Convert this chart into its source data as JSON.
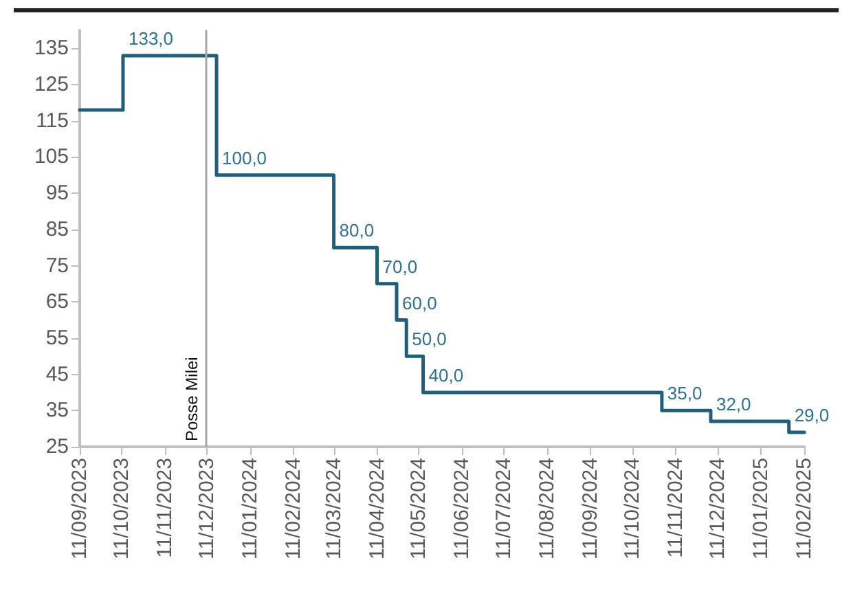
{
  "chart_data": {
    "type": "step",
    "x": [
      "2023-09-11",
      "2023-10-12",
      "2023-12-18",
      "2024-03-11",
      "2024-04-11",
      "2024-04-25",
      "2024-05-02",
      "2024-05-14",
      "2024-11-01",
      "2024-12-06",
      "2025-01-31",
      "2025-02-11"
    ],
    "values": [
      118,
      133,
      100,
      80,
      70,
      60,
      50,
      40,
      35,
      32,
      29,
      29
    ],
    "value_labels": [
      null,
      "133,0",
      "100,0",
      "80,0",
      "70,0",
      "60,0",
      "50,0",
      "40,0",
      "35,0",
      "32,0",
      "29,0",
      null
    ],
    "color": "#1f5f7a",
    "ylim": [
      25,
      140
    ],
    "yticks": [
      25,
      35,
      45,
      55,
      65,
      75,
      85,
      95,
      105,
      115,
      125,
      135
    ],
    "xlim": [
      "2023-09-11",
      "2025-02-11"
    ],
    "xticks": [
      {
        "value": "2023-09-11",
        "label": "11/09/2023"
      },
      {
        "value": "2023-10-11",
        "label": "11/10/2023"
      },
      {
        "value": "2023-11-11",
        "label": "11/11/2023"
      },
      {
        "value": "2023-12-11",
        "label": "11/12/2023"
      },
      {
        "value": "2024-01-11",
        "label": "11/01/2024"
      },
      {
        "value": "2024-02-11",
        "label": "11/02/2024"
      },
      {
        "value": "2024-03-11",
        "label": "11/03/2024"
      },
      {
        "value": "2024-04-11",
        "label": "11/04/2024"
      },
      {
        "value": "2024-05-11",
        "label": "11/05/2024"
      },
      {
        "value": "2024-06-11",
        "label": "11/06/2024"
      },
      {
        "value": "2024-07-11",
        "label": "11/07/2024"
      },
      {
        "value": "2024-08-11",
        "label": "11/08/2024"
      },
      {
        "value": "2024-09-11",
        "label": "11/09/2024"
      },
      {
        "value": "2024-10-11",
        "label": "11/10/2024"
      },
      {
        "value": "2024-11-11",
        "label": "11/11/2024"
      },
      {
        "value": "2024-12-11",
        "label": "11/12/2024"
      },
      {
        "value": "2025-01-11",
        "label": "11/01/2025"
      },
      {
        "value": "2025-02-11",
        "label": "11/02/2025"
      }
    ],
    "ref_lines": [
      {
        "axis": "x",
        "value": "2023-12-10",
        "label": "Posse Milei",
        "color": "#a6a6a6"
      }
    ],
    "grid": false,
    "marker": "none",
    "line_style": "solid"
  }
}
